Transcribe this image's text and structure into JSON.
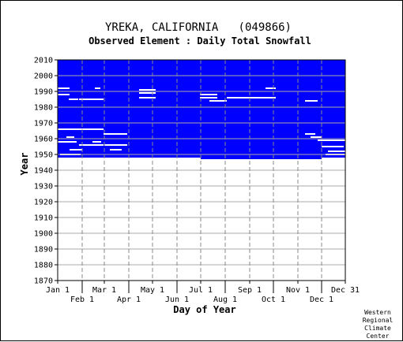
{
  "chart_data": {
    "type": "heatmap",
    "title": "YREKA, CALIFORNIA   (049866)",
    "subtitle": "Observed Element : Daily Total Snowfall",
    "xlabel": "Day of Year",
    "ylabel": "Year",
    "x_ticks_top_row": [
      "Jan 1",
      "Mar 1",
      "May 1",
      "Jul 1",
      "Sep 1",
      "Nov 1",
      "Dec 31"
    ],
    "x_ticks_bottom_row": [
      "Feb 1",
      "Apr 1",
      "Jun 1",
      "Aug 1",
      "Oct 1",
      "Dec 1"
    ],
    "x_tick_days_top_row": [
      1,
      60,
      121,
      182,
      244,
      305,
      365
    ],
    "x_tick_days_bottom_row": [
      32,
      91,
      152,
      213,
      274,
      335
    ],
    "y_ticks": [
      "2010",
      "2000",
      "1990",
      "1980",
      "1970",
      "1960",
      "1950",
      "1940",
      "1930",
      "1920",
      "1910",
      "1900",
      "1890",
      "1880",
      "1870"
    ],
    "xlim": [
      1,
      365
    ],
    "ylim": [
      1870,
      2010
    ],
    "grid": true,
    "colors": {
      "observed": "#0000ff",
      "missing": "#ffffff"
    },
    "coverage": {
      "start_year": 1948,
      "end_year": 2010,
      "start_dates_by_segment": [
        {
          "from_day": 1,
          "to_day": 32,
          "first_year": 1948
        },
        {
          "from_day": 32,
          "to_day": 182,
          "first_year": 1948
        },
        {
          "from_day": 182,
          "to_day": 335,
          "first_year": 1947
        },
        {
          "from_day": 335,
          "to_day": 365,
          "first_year": 1948
        }
      ]
    },
    "missing_runs": [
      {
        "year": 1992,
        "start_day": 1,
        "end_day": 16
      },
      {
        "year": 1988,
        "start_day": 1,
        "end_day": 16
      },
      {
        "year": 1985,
        "start_day": 15,
        "end_day": 27
      },
      {
        "year": 1985,
        "start_day": 28,
        "end_day": 59
      },
      {
        "year": 1992,
        "start_day": 48,
        "end_day": 55
      },
      {
        "year": 1991,
        "start_day": 104,
        "end_day": 125
      },
      {
        "year": 1989,
        "start_day": 104,
        "end_day": 125
      },
      {
        "year": 1986,
        "start_day": 104,
        "end_day": 125
      },
      {
        "year": 1988,
        "start_day": 181,
        "end_day": 203
      },
      {
        "year": 1986,
        "start_day": 181,
        "end_day": 203
      },
      {
        "year": 1984,
        "start_day": 193,
        "end_day": 215
      },
      {
        "year": 1986,
        "start_day": 215,
        "end_day": 277
      },
      {
        "year": 1992,
        "start_day": 264,
        "end_day": 277
      },
      {
        "year": 1984,
        "start_day": 314,
        "end_day": 330
      },
      {
        "year": 1966,
        "start_day": 1,
        "end_day": 59
      },
      {
        "year": 1963,
        "start_day": 59,
        "end_day": 89
      },
      {
        "year": 1956,
        "start_day": 60,
        "end_day": 89
      },
      {
        "year": 1956,
        "start_day": 28,
        "end_day": 59
      },
      {
        "year": 1963,
        "start_day": 314,
        "end_day": 327
      },
      {
        "year": 1961,
        "start_day": 321,
        "end_day": 335
      },
      {
        "year": 1959,
        "start_day": 330,
        "end_day": 365
      },
      {
        "year": 1955,
        "start_day": 335,
        "end_day": 363
      },
      {
        "year": 1952,
        "start_day": 343,
        "end_day": 365
      },
      {
        "year": 1950,
        "start_day": 340,
        "end_day": 365
      },
      {
        "year": 1961,
        "start_day": 12,
        "end_day": 22
      },
      {
        "year": 1958,
        "start_day": 1,
        "end_day": 25
      },
      {
        "year": 1953,
        "start_day": 16,
        "end_day": 32
      },
      {
        "year": 1950,
        "start_day": 4,
        "end_day": 30
      },
      {
        "year": 1953,
        "start_day": 67,
        "end_day": 82
      },
      {
        "year": 1958,
        "start_day": 45,
        "end_day": 56
      }
    ]
  },
  "credit": [
    "Western",
    "Regional",
    "Climate",
    "Center"
  ]
}
